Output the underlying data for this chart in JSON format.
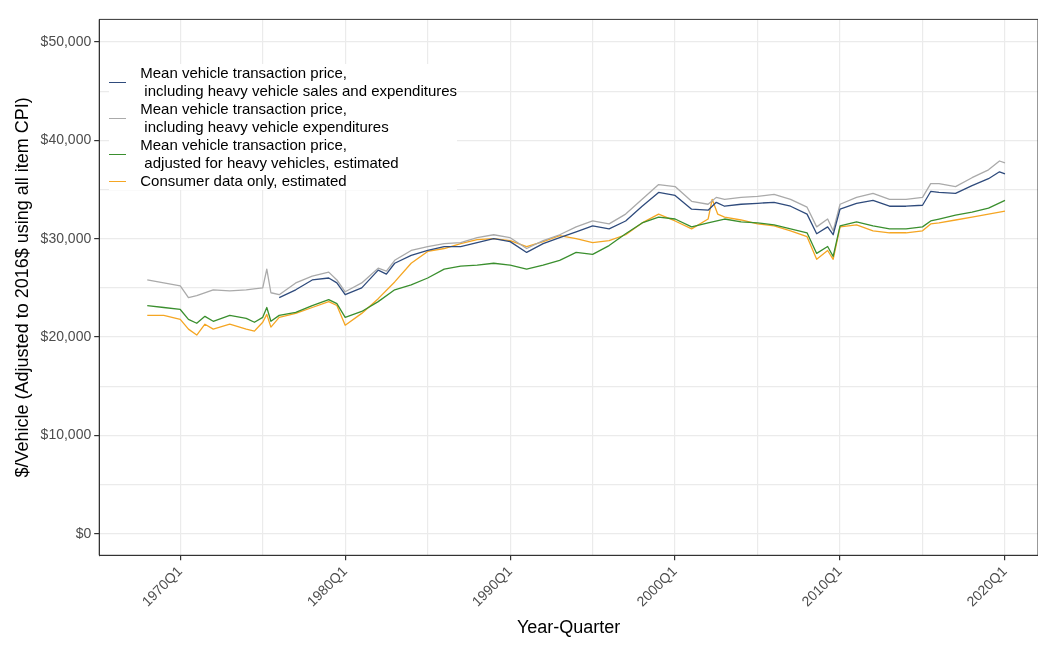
{
  "chart_data": {
    "type": "line",
    "xlabel": "Year-Quarter",
    "ylabel": "$/Vehicle (Adjusted to 2016$ using all item CPI)",
    "xlim": [
      "1965-02",
      "2022-01"
    ],
    "ylim": [
      -2200,
      52300
    ],
    "xticks": [
      {
        "value": "1970-01",
        "label": "1970Q1"
      },
      {
        "value": "1975-01",
        "label": null
      },
      {
        "value": "1980-01",
        "label": "1980Q1"
      },
      {
        "value": "1985-01",
        "label": null
      },
      {
        "value": "1990-01",
        "label": "1990Q1"
      },
      {
        "value": "1995-01",
        "label": null
      },
      {
        "value": "2000-01",
        "label": "2000Q1"
      },
      {
        "value": "2005-01",
        "label": null
      },
      {
        "value": "2010-01",
        "label": "2010Q1"
      },
      {
        "value": "2015-01",
        "label": null
      },
      {
        "value": "2020-01",
        "label": "2020Q1"
      }
    ],
    "yticks": [
      {
        "value": 0,
        "label": "$0"
      },
      {
        "value": 5000,
        "label": null
      },
      {
        "value": 10000,
        "label": "$10,000"
      },
      {
        "value": 15000,
        "label": null
      },
      {
        "value": 20000,
        "label": "$20,000"
      },
      {
        "value": 25000,
        "label": null
      },
      {
        "value": 30000,
        "label": "$30,000"
      },
      {
        "value": 35000,
        "label": null
      },
      {
        "value": 40000,
        "label": "$40,000"
      },
      {
        "value": 45000,
        "label": null
      },
      {
        "value": 50000,
        "label": "$50,000"
      }
    ],
    "grid": true,
    "legend": "top left",
    "line_style": "solid",
    "marker": "none",
    "series": [
      {
        "name": "Mean vehicle transaction price,\n including heavy vehicle sales and expenditures",
        "color": "#2f4b7c",
        "x": [
          "1976-01",
          "1977-01",
          "1978-01",
          "1979-01",
          "1979-07",
          "1980-01",
          "1981-01",
          "1982-01",
          "1982-07",
          "1983-01",
          "1984-01",
          "1985-01",
          "1986-01",
          "1987-01",
          "1988-01",
          "1989-01",
          "1990-01",
          "1991-01",
          "1992-01",
          "1993-01",
          "1994-01",
          "1995-01",
          "1996-01",
          "1997-01",
          "1998-01",
          "1999-01",
          "2000-01",
          "2001-01",
          "2002-01",
          "2002-07",
          "2003-01",
          "2004-01",
          "2005-01",
          "2006-01",
          "2007-01",
          "2008-01",
          "2008-08",
          "2009-04",
          "2009-08",
          "2010-01",
          "2011-01",
          "2012-01",
          "2013-01",
          "2014-01",
          "2015-01",
          "2015-07",
          "2016-01",
          "2017-01",
          "2018-01",
          "2019-01",
          "2019-09",
          "2020-01"
        ],
        "values": [
          24000,
          24800,
          25800,
          26000,
          25500,
          24300,
          25000,
          26800,
          26400,
          27500,
          28300,
          28800,
          29200,
          29200,
          29600,
          30000,
          29700,
          28600,
          29500,
          30100,
          30700,
          31300,
          31000,
          31800,
          33300,
          34700,
          34400,
          33000,
          32900,
          33700,
          33300,
          33500,
          33600,
          33700,
          33300,
          32500,
          30500,
          31200,
          30400,
          33000,
          33600,
          33900,
          33300,
          33300,
          33400,
          34800,
          34700,
          34600,
          35400,
          36100,
          36800,
          36600
        ]
      },
      {
        "name": "Mean vehicle transaction price,\n including heavy vehicle expenditures",
        "color": "#aaaaaa",
        "x": [
          "1968-01",
          "1969-01",
          "1970-01",
          "1970-07",
          "1971-01",
          "1972-01",
          "1973-01",
          "1974-01",
          "1975-01",
          "1975-04",
          "1975-07",
          "1976-01",
          "1977-01",
          "1978-01",
          "1979-01",
          "1979-07",
          "1980-01",
          "1981-01",
          "1982-01",
          "1982-07",
          "1983-01",
          "1984-01",
          "1985-01",
          "1986-01",
          "1987-01",
          "1988-01",
          "1989-01",
          "1990-01",
          "1991-01",
          "1992-01",
          "1993-01",
          "1994-01",
          "1995-01",
          "1996-01",
          "1997-01",
          "1998-01",
          "1999-01",
          "2000-01",
          "2001-01",
          "2002-01",
          "2002-07",
          "2003-01",
          "2004-01",
          "2005-01",
          "2006-01",
          "2007-01",
          "2008-01",
          "2008-08",
          "2009-04",
          "2009-08",
          "2010-01",
          "2011-01",
          "2012-01",
          "2013-01",
          "2014-01",
          "2015-01",
          "2015-07",
          "2016-01",
          "2017-01",
          "2018-01",
          "2019-01",
          "2019-09",
          "2020-01"
        ],
        "values": [
          25800,
          25500,
          25200,
          24000,
          24200,
          24800,
          24700,
          24800,
          25000,
          26900,
          24500,
          24300,
          25500,
          26200,
          26600,
          25800,
          24600,
          25500,
          27000,
          26700,
          27800,
          28800,
          29200,
          29500,
          29600,
          30100,
          30400,
          30100,
          29000,
          29800,
          30400,
          31200,
          31800,
          31500,
          32500,
          34000,
          35500,
          35300,
          33800,
          33500,
          34200,
          34000,
          34200,
          34300,
          34500,
          34000,
          33200,
          31200,
          32000,
          30800,
          33500,
          34200,
          34600,
          34000,
          34000,
          34200,
          35600,
          35600,
          35300,
          36200,
          37000,
          37900,
          37700
        ]
      },
      {
        "name": "Mean vehicle transaction price,\n adjusted for heavy vehicles, estimated",
        "color": "#3a8f2e",
        "x": [
          "1968-01",
          "1969-01",
          "1970-01",
          "1970-07",
          "1971-01",
          "1971-07",
          "1972-01",
          "1973-01",
          "1974-01",
          "1974-07",
          "1975-01",
          "1975-04",
          "1975-07",
          "1976-01",
          "1977-01",
          "1978-01",
          "1979-01",
          "1979-07",
          "1980-01",
          "1981-01",
          "1982-01",
          "1983-01",
          "1984-01",
          "1985-01",
          "1986-01",
          "1987-01",
          "1988-01",
          "1989-01",
          "1990-01",
          "1991-01",
          "1992-01",
          "1993-01",
          "1994-01",
          "1995-01",
          "1996-01",
          "1997-01",
          "1998-01",
          "1999-01",
          "2000-01",
          "2001-01",
          "2002-01",
          "2003-01",
          "2004-01",
          "2005-01",
          "2006-01",
          "2007-01",
          "2008-01",
          "2008-08",
          "2009-04",
          "2009-08",
          "2010-01",
          "2011-01",
          "2012-01",
          "2013-01",
          "2014-01",
          "2015-01",
          "2015-07",
          "2016-01",
          "2017-01",
          "2018-01",
          "2019-01",
          "2020-01"
        ],
        "values": [
          23200,
          23000,
          22800,
          21800,
          21400,
          22100,
          21600,
          22200,
          21900,
          21500,
          22000,
          23000,
          21600,
          22200,
          22500,
          23200,
          23800,
          23400,
          22000,
          22600,
          23600,
          24800,
          25300,
          26000,
          26900,
          27200,
          27300,
          27500,
          27300,
          26900,
          27300,
          27800,
          28600,
          28400,
          29300,
          30500,
          31600,
          32200,
          32000,
          31200,
          31600,
          32000,
          31700,
          31600,
          31400,
          31000,
          30600,
          28500,
          29200,
          28200,
          31300,
          31700,
          31300,
          31000,
          31000,
          31200,
          31800,
          32000,
          32400,
          32700,
          33100,
          33900
        ]
      },
      {
        "name": "Consumer data only, estimated",
        "color": "#f5a623",
        "x": [
          "1968-01",
          "1969-01",
          "1970-01",
          "1970-07",
          "1971-01",
          "1971-07",
          "1972-01",
          "1973-01",
          "1974-01",
          "1974-07",
          "1975-01",
          "1975-04",
          "1975-07",
          "1976-01",
          "1977-01",
          "1978-01",
          "1979-01",
          "1979-07",
          "1980-01",
          "1981-01",
          "1982-01",
          "1983-01",
          "1984-01",
          "1985-01",
          "1986-01",
          "1987-01",
          "1988-01",
          "1989-01",
          "1990-01",
          "1991-01",
          "1992-01",
          "1993-01",
          "1994-01",
          "1995-01",
          "1996-01",
          "1997-01",
          "1998-01",
          "1999-01",
          "2000-01",
          "2001-01",
          "2002-01",
          "2002-04",
          "2002-08",
          "2003-01",
          "2004-01",
          "2005-01",
          "2006-01",
          "2007-01",
          "2008-01",
          "2008-08",
          "2009-04",
          "2009-08",
          "2010-01",
          "2011-01",
          "2012-01",
          "2013-01",
          "2014-01",
          "2015-01",
          "2015-07",
          "2016-01",
          "2017-01",
          "2018-01",
          "2019-01",
          "2020-01"
        ],
        "values": [
          22200,
          22200,
          21800,
          20800,
          20200,
          21300,
          20800,
          21300,
          20800,
          20600,
          21500,
          22300,
          21000,
          22000,
          22400,
          23000,
          23600,
          23200,
          21200,
          22400,
          23900,
          25600,
          27500,
          28700,
          29000,
          29500,
          29900,
          30000,
          29800,
          29200,
          29700,
          30300,
          30000,
          29600,
          29800,
          30400,
          31600,
          32500,
          31800,
          31000,
          32000,
          34000,
          32500,
          32200,
          31900,
          31500,
          31300,
          30800,
          30200,
          27900,
          28800,
          27900,
          31200,
          31400,
          30800,
          30600,
          30600,
          30800,
          31500,
          31600,
          31900,
          32200,
          32500,
          32800
        ]
      }
    ]
  }
}
